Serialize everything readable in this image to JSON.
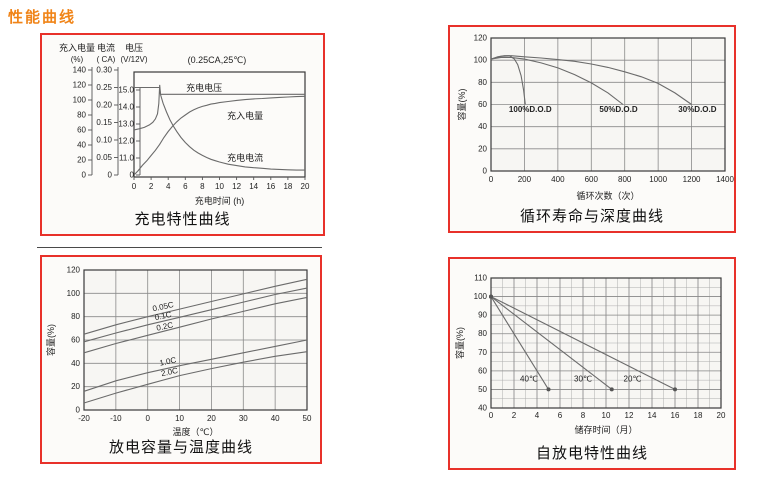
{
  "page": {
    "title": "性能曲线"
  },
  "colors": {
    "title_orange": "#f08418",
    "panel_border_red": "#e8312a",
    "curve_gray": "#6b6b6b",
    "grid_gray": "#9a9a9a",
    "plot_border": "#3a3a3a",
    "text_dark": "#222222"
  },
  "chart_data": [
    {
      "type": "line",
      "caption": "充电特性曲线",
      "annotation": "(0.25CA,25℃)",
      "xlabel": "充电时间 (h)",
      "xlim": [
        0,
        20
      ],
      "x_ticks": [
        "0",
        "2",
        "4",
        "6",
        "8",
        "10",
        "12",
        "14",
        "16",
        "18",
        "20"
      ],
      "axes": [
        {
          "name": "充入电量",
          "unit": "(%)",
          "ticks": [
            "140",
            "120",
            "100",
            "80",
            "60",
            "40",
            "20",
            "0"
          ],
          "range": [
            0,
            140
          ]
        },
        {
          "name": "电流",
          "unit": "( CA)",
          "ticks": [
            "0.30",
            "0.25",
            "0.20",
            "0.15",
            "0.10",
            "0.05",
            "0"
          ],
          "range": [
            0,
            0.3
          ]
        },
        {
          "name": "电压",
          "unit": "(V/12V)",
          "ticks": [
            "15.0",
            "14.0",
            "13.0",
            "12.0",
            "11.0",
            "0"
          ],
          "broken_axis": true
        }
      ],
      "series": [
        {
          "name": "充电电压",
          "axis": "voltage",
          "points": [
            [
              0,
              12.65
            ],
            [
              0.6,
              12.72
            ],
            [
              1.2,
              12.8
            ],
            [
              1.8,
              12.95
            ],
            [
              2.2,
              13.1
            ],
            [
              2.5,
              13.3
            ],
            [
              2.75,
              13.6
            ],
            [
              2.9,
              14.2
            ],
            [
              3.0,
              15.3
            ],
            [
              3.1,
              14.75
            ],
            [
              20,
              14.75
            ]
          ]
        },
        {
          "name": "充入电量",
          "axis": "capacity",
          "points": [
            [
              0,
              0
            ],
            [
              0.5,
              6
            ],
            [
              1,
              13
            ],
            [
              1.5,
              19
            ],
            [
              2,
              26
            ],
            [
              2.5,
              33
            ],
            [
              3,
              41
            ],
            [
              3.5,
              50
            ],
            [
              4,
              58
            ],
            [
              4.5,
              65
            ],
            [
              5,
              71
            ],
            [
              5.5,
              76
            ],
            [
              6,
              80
            ],
            [
              6.5,
              84
            ],
            [
              7,
              87
            ],
            [
              7.5,
              89.5
            ],
            [
              8,
              91.5
            ],
            [
              8.5,
              93
            ],
            [
              9,
              94.5
            ],
            [
              9.5,
              95.5
            ],
            [
              10,
              96.5
            ],
            [
              11,
              98
            ],
            [
              12,
              99.5
            ],
            [
              13,
              100.5
            ],
            [
              14,
              101.5
            ],
            [
              15,
              102
            ],
            [
              16,
              102.8
            ],
            [
              17,
              103.4
            ],
            [
              18,
              104
            ],
            [
              19,
              104.5
            ],
            [
              20,
              105
            ]
          ]
        },
        {
          "name": "充电电流",
          "axis": "current",
          "points": [
            [
              0,
              0.25
            ],
            [
              3.0,
              0.25
            ],
            [
              3.1,
              0.23
            ],
            [
              3.4,
              0.205
            ],
            [
              3.8,
              0.18
            ],
            [
              4.2,
              0.158
            ],
            [
              4.6,
              0.14
            ],
            [
              5,
              0.124
            ],
            [
              5.5,
              0.107
            ],
            [
              6,
              0.093
            ],
            [
              6.5,
              0.081
            ],
            [
              7,
              0.071
            ],
            [
              7.5,
              0.063
            ],
            [
              8,
              0.056
            ],
            [
              8.5,
              0.05
            ],
            [
              9,
              0.045
            ],
            [
              9.5,
              0.041
            ],
            [
              10,
              0.037
            ],
            [
              11,
              0.031
            ],
            [
              12,
              0.027
            ],
            [
              13,
              0.023
            ],
            [
              14,
              0.021
            ],
            [
              15,
              0.019
            ],
            [
              16,
              0.017
            ],
            [
              17,
              0.016
            ],
            [
              18,
              0.015
            ],
            [
              19,
              0.014
            ],
            [
              20,
              0.014
            ]
          ]
        }
      ],
      "series_labels": [
        {
          "text": "充电电压",
          "axis": "voltage",
          "x": 8.2,
          "y": 15.12
        },
        {
          "text": "充入电量",
          "axis": "capacity",
          "x": 13,
          "y": 79
        },
        {
          "text": "充电电流",
          "axis": "current",
          "x": 13,
          "y": 0.048
        }
      ]
    },
    {
      "type": "line",
      "caption": "循环寿命与深度曲线",
      "xlabel": "循环次数（次）",
      "ylabel": "容量(%)",
      "xlim": [
        0,
        1400
      ],
      "ylim": [
        0,
        120
      ],
      "x_ticks": [
        "0",
        "200",
        "400",
        "600",
        "800",
        "1000",
        "1200",
        "1400"
      ],
      "y_ticks": [
        "120",
        "100",
        "80",
        "60",
        "40",
        "20",
        "0"
      ],
      "series": [
        {
          "name": "100%D.O.D",
          "points": [
            [
              0,
              101
            ],
            [
              40,
              103
            ],
            [
              80,
              104
            ],
            [
              110,
              104
            ],
            [
              140,
              101
            ],
            [
              160,
              96
            ],
            [
              180,
              86
            ],
            [
              195,
              73
            ],
            [
              205,
              60
            ]
          ]
        },
        {
          "name": "50%D.O.D",
          "points": [
            [
              0,
              101
            ],
            [
              60,
              102.5
            ],
            [
              120,
              102.5
            ],
            [
              200,
              101
            ],
            [
              300,
              97.5
            ],
            [
              400,
              93
            ],
            [
              500,
              87
            ],
            [
              600,
              79.5
            ],
            [
              700,
              70.5
            ],
            [
              790,
              60
            ]
          ]
        },
        {
          "name": "30%D.O.D",
          "points": [
            [
              0,
              101
            ],
            [
              60,
              103.5
            ],
            [
              120,
              104
            ],
            [
              200,
              103
            ],
            [
              300,
              102
            ],
            [
              400,
              100.5
            ],
            [
              500,
              99
            ],
            [
              600,
              96.5
            ],
            [
              700,
              93.5
            ],
            [
              800,
              89.5
            ],
            [
              900,
              85
            ],
            [
              1000,
              79
            ],
            [
              1100,
              70.5
            ],
            [
              1200,
              60
            ]
          ]
        }
      ],
      "series_labels": [
        {
          "text": "100%D.O.D",
          "x": 235,
          "y": 56
        },
        {
          "text": "50%D.O.D",
          "x": 763,
          "y": 56
        },
        {
          "text": "30%D.O.D",
          "x": 1235,
          "y": 56
        }
      ]
    },
    {
      "type": "line",
      "caption": "放电容量与温度曲线",
      "xlabel": "温度（℃）",
      "ylabel": "容量(%)",
      "xlim": [
        -20,
        50
      ],
      "ylim": [
        0,
        120
      ],
      "x_ticks": [
        "-20",
        "-10",
        "0",
        "10",
        "20",
        "30",
        "40",
        "50"
      ],
      "y_ticks": [
        "120",
        "100",
        "80",
        "60",
        "40",
        "20",
        "0"
      ],
      "series": [
        {
          "name": "0.05C",
          "points": [
            [
              -20,
              65
            ],
            [
              -10,
              73
            ],
            [
              0,
              80
            ],
            [
              10,
              86.5
            ],
            [
              20,
              93
            ],
            [
              30,
              99.5
            ],
            [
              40,
              106
            ],
            [
              50,
              112
            ]
          ]
        },
        {
          "name": "0.1C",
          "points": [
            [
              -20,
              58.5
            ],
            [
              -10,
              66
            ],
            [
              0,
              73
            ],
            [
              10,
              79.5
            ],
            [
              20,
              86
            ],
            [
              30,
              92.5
            ],
            [
              40,
              99
            ],
            [
              50,
              104.5
            ]
          ]
        },
        {
          "name": "0.2C",
          "points": [
            [
              -20,
              49
            ],
            [
              -10,
              57
            ],
            [
              0,
              64
            ],
            [
              10,
              71
            ],
            [
              20,
              78
            ],
            [
              30,
              84.5
            ],
            [
              40,
              91
            ],
            [
              50,
              96.5
            ]
          ]
        },
        {
          "name": "1.0C",
          "points": [
            [
              -20,
              16
            ],
            [
              -10,
              25
            ],
            [
              0,
              32
            ],
            [
              10,
              38
            ],
            [
              20,
              43.5
            ],
            [
              30,
              49
            ],
            [
              40,
              54.5
            ],
            [
              50,
              60
            ]
          ]
        },
        {
          "name": "2.0C",
          "points": [
            [
              -20,
              6
            ],
            [
              -10,
              14.5
            ],
            [
              0,
              22
            ],
            [
              10,
              29.5
            ],
            [
              20,
              35.5
            ],
            [
              30,
              41
            ],
            [
              40,
              46
            ],
            [
              50,
              50
            ]
          ]
        }
      ],
      "series_labels": [
        {
          "text": "0.05C",
          "x": 5,
          "y": 89,
          "rotate": -12
        },
        {
          "text": "0.1C",
          "x": 5,
          "y": 81,
          "rotate": -12
        },
        {
          "text": "0.2C",
          "x": 5.5,
          "y": 72,
          "rotate": -12
        },
        {
          "text": "1.0C",
          "x": 6.5,
          "y": 42,
          "rotate": -12
        },
        {
          "text": "2.0C",
          "x": 7,
          "y": 33,
          "rotate": -12
        }
      ]
    },
    {
      "type": "line",
      "caption": "自放电特性曲线",
      "xlabel": "储存时间（月）",
      "ylabel": "容量(%)",
      "xlim": [
        0,
        20
      ],
      "ylim": [
        40,
        110
      ],
      "x_ticks": [
        "0",
        "2",
        "4",
        "6",
        "8",
        "10",
        "12",
        "14",
        "16",
        "18",
        "20"
      ],
      "y_ticks": [
        "110",
        "100",
        "90",
        "80",
        "70",
        "60",
        "50",
        "40"
      ],
      "minor_x_step": 1,
      "minor_y_step": 5,
      "series": [
        {
          "name": "40℃",
          "points": [
            [
              0,
              100
            ],
            [
              5,
              50
            ]
          ],
          "marker_end": true
        },
        {
          "name": "30℃",
          "points": [
            [
              0,
              100
            ],
            [
              10.5,
              50
            ]
          ],
          "marker_end": true
        },
        {
          "name": "20℃",
          "points": [
            [
              0,
              100
            ],
            [
              16,
              50
            ]
          ],
          "marker_end": true
        }
      ],
      "series_labels": [
        {
          "text": "40℃",
          "x": 3.3,
          "y": 56
        },
        {
          "text": "30℃",
          "x": 8.0,
          "y": 56
        },
        {
          "text": "20℃",
          "x": 12.3,
          "y": 56
        }
      ]
    }
  ]
}
